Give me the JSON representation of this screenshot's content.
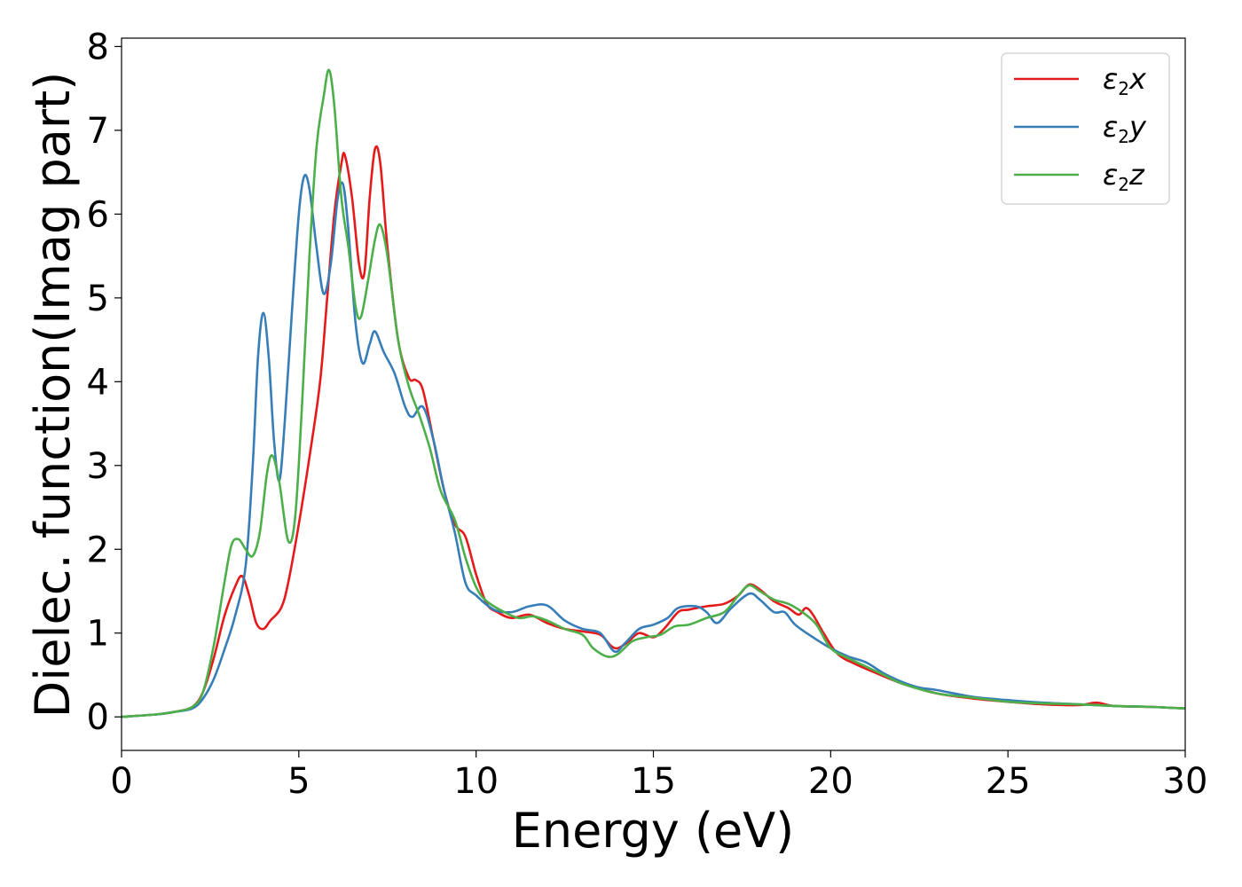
{
  "chart_data": {
    "type": "line",
    "xlabel": "Energy (eV)",
    "ylabel": "Dielec. function(Imag part)",
    "xlim": [
      0,
      30
    ],
    "ylim": [
      -0.4,
      8.1
    ],
    "xticks": [
      0,
      5,
      10,
      15,
      20,
      25,
      30
    ],
    "yticks": [
      0,
      1,
      2,
      3,
      4,
      5,
      6,
      7,
      8
    ],
    "grid": false,
    "legend_position": "top-right",
    "series": [
      {
        "name": "ε2x",
        "legend_base": "ε",
        "legend_sub": "2",
        "legend_var": "x",
        "color": "#e41a1c",
        "points": [
          [
            0,
            0
          ],
          [
            1,
            0.03
          ],
          [
            1.5,
            0.06
          ],
          [
            2,
            0.12
          ],
          [
            2.3,
            0.3
          ],
          [
            2.6,
            0.7
          ],
          [
            2.9,
            1.2
          ],
          [
            3.2,
            1.55
          ],
          [
            3.4,
            1.68
          ],
          [
            3.6,
            1.45
          ],
          [
            3.8,
            1.12
          ],
          [
            4.0,
            1.05
          ],
          [
            4.2,
            1.15
          ],
          [
            4.5,
            1.3
          ],
          [
            4.7,
            1.6
          ],
          [
            5.0,
            2.3
          ],
          [
            5.3,
            3.1
          ],
          [
            5.6,
            4.0
          ],
          [
            5.8,
            5.0
          ],
          [
            6.0,
            6.0
          ],
          [
            6.2,
            6.6
          ],
          [
            6.3,
            6.7
          ],
          [
            6.5,
            6.2
          ],
          [
            6.7,
            5.4
          ],
          [
            6.85,
            5.3
          ],
          [
            7.0,
            6.2
          ],
          [
            7.15,
            6.78
          ],
          [
            7.3,
            6.6
          ],
          [
            7.5,
            5.6
          ],
          [
            7.8,
            4.5
          ],
          [
            8.1,
            4.05
          ],
          [
            8.3,
            4.02
          ],
          [
            8.5,
            3.9
          ],
          [
            8.8,
            3.3
          ],
          [
            9.1,
            2.7
          ],
          [
            9.4,
            2.3
          ],
          [
            9.7,
            2.15
          ],
          [
            10.0,
            1.7
          ],
          [
            10.3,
            1.35
          ],
          [
            10.6,
            1.25
          ],
          [
            11.0,
            1.18
          ],
          [
            11.5,
            1.22
          ],
          [
            12.0,
            1.12
          ],
          [
            12.5,
            1.05
          ],
          [
            13.0,
            1.02
          ],
          [
            13.5,
            0.98
          ],
          [
            13.8,
            0.85
          ],
          [
            14.0,
            0.82
          ],
          [
            14.3,
            0.9
          ],
          [
            14.6,
            1.0
          ],
          [
            15.0,
            0.95
          ],
          [
            15.3,
            1.05
          ],
          [
            15.7,
            1.25
          ],
          [
            16.0,
            1.28
          ],
          [
            16.5,
            1.32
          ],
          [
            17.0,
            1.35
          ],
          [
            17.4,
            1.45
          ],
          [
            17.7,
            1.58
          ],
          [
            18.0,
            1.52
          ],
          [
            18.4,
            1.38
          ],
          [
            18.8,
            1.3
          ],
          [
            19.1,
            1.22
          ],
          [
            19.3,
            1.3
          ],
          [
            19.5,
            1.22
          ],
          [
            19.8,
            1.0
          ],
          [
            20.2,
            0.75
          ],
          [
            20.7,
            0.63
          ],
          [
            21.3,
            0.52
          ],
          [
            22.0,
            0.4
          ],
          [
            23.0,
            0.28
          ],
          [
            24.0,
            0.22
          ],
          [
            25.0,
            0.18
          ],
          [
            26.0,
            0.15
          ],
          [
            27.0,
            0.14
          ],
          [
            27.5,
            0.17
          ],
          [
            28.0,
            0.13
          ],
          [
            29.0,
            0.12
          ],
          [
            30.0,
            0.1
          ]
        ]
      },
      {
        "name": "ε2y",
        "legend_base": "ε",
        "legend_sub": "2",
        "legend_var": "y",
        "color": "#377eb8",
        "points": [
          [
            0,
            0
          ],
          [
            1,
            0.03
          ],
          [
            1.5,
            0.06
          ],
          [
            2,
            0.1
          ],
          [
            2.3,
            0.22
          ],
          [
            2.6,
            0.45
          ],
          [
            2.9,
            0.8
          ],
          [
            3.2,
            1.2
          ],
          [
            3.5,
            1.8
          ],
          [
            3.7,
            3.0
          ],
          [
            3.85,
            4.3
          ],
          [
            4.0,
            4.82
          ],
          [
            4.15,
            4.3
          ],
          [
            4.3,
            3.3
          ],
          [
            4.45,
            2.82
          ],
          [
            4.6,
            3.5
          ],
          [
            4.8,
            4.8
          ],
          [
            5.0,
            6.0
          ],
          [
            5.15,
            6.45
          ],
          [
            5.3,
            6.3
          ],
          [
            5.5,
            5.6
          ],
          [
            5.7,
            5.05
          ],
          [
            5.9,
            5.4
          ],
          [
            6.1,
            6.2
          ],
          [
            6.25,
            6.35
          ],
          [
            6.4,
            5.8
          ],
          [
            6.6,
            4.7
          ],
          [
            6.8,
            4.22
          ],
          [
            7.0,
            4.45
          ],
          [
            7.15,
            4.6
          ],
          [
            7.4,
            4.35
          ],
          [
            7.7,
            4.1
          ],
          [
            8.0,
            3.7
          ],
          [
            8.2,
            3.58
          ],
          [
            8.5,
            3.7
          ],
          [
            8.8,
            3.3
          ],
          [
            9.1,
            2.7
          ],
          [
            9.4,
            2.2
          ],
          [
            9.7,
            1.6
          ],
          [
            10.0,
            1.45
          ],
          [
            10.5,
            1.28
          ],
          [
            11.0,
            1.25
          ],
          [
            11.5,
            1.32
          ],
          [
            12.0,
            1.33
          ],
          [
            12.5,
            1.15
          ],
          [
            13.0,
            1.05
          ],
          [
            13.5,
            1.0
          ],
          [
            13.9,
            0.78
          ],
          [
            14.2,
            0.88
          ],
          [
            14.6,
            1.05
          ],
          [
            15.0,
            1.1
          ],
          [
            15.4,
            1.18
          ],
          [
            15.7,
            1.3
          ],
          [
            16.2,
            1.32
          ],
          [
            16.5,
            1.25
          ],
          [
            16.8,
            1.12
          ],
          [
            17.2,
            1.3
          ],
          [
            17.7,
            1.47
          ],
          [
            18.0,
            1.4
          ],
          [
            18.4,
            1.25
          ],
          [
            18.7,
            1.25
          ],
          [
            19.0,
            1.1
          ],
          [
            19.5,
            0.95
          ],
          [
            20.0,
            0.82
          ],
          [
            20.5,
            0.72
          ],
          [
            21.0,
            0.65
          ],
          [
            21.5,
            0.52
          ],
          [
            22.0,
            0.42
          ],
          [
            22.5,
            0.35
          ],
          [
            23.0,
            0.32
          ],
          [
            24.0,
            0.24
          ],
          [
            25.0,
            0.2
          ],
          [
            26.0,
            0.17
          ],
          [
            27.0,
            0.15
          ],
          [
            28.0,
            0.13
          ],
          [
            29.0,
            0.12
          ],
          [
            30.0,
            0.1
          ]
        ]
      },
      {
        "name": "ε2z",
        "legend_base": "ε",
        "legend_sub": "2",
        "legend_var": "z",
        "color": "#4daf4a",
        "points": [
          [
            0,
            0
          ],
          [
            1,
            0.03
          ],
          [
            1.5,
            0.06
          ],
          [
            2,
            0.12
          ],
          [
            2.3,
            0.3
          ],
          [
            2.6,
            0.85
          ],
          [
            2.9,
            1.6
          ],
          [
            3.1,
            2.05
          ],
          [
            3.3,
            2.12
          ],
          [
            3.5,
            2.0
          ],
          [
            3.7,
            1.92
          ],
          [
            3.9,
            2.2
          ],
          [
            4.1,
            2.9
          ],
          [
            4.25,
            3.12
          ],
          [
            4.45,
            2.8
          ],
          [
            4.7,
            2.1
          ],
          [
            4.9,
            2.4
          ],
          [
            5.1,
            3.8
          ],
          [
            5.3,
            5.5
          ],
          [
            5.5,
            6.8
          ],
          [
            5.7,
            7.4
          ],
          [
            5.85,
            7.72
          ],
          [
            6.0,
            7.3
          ],
          [
            6.2,
            6.2
          ],
          [
            6.4,
            5.6
          ],
          [
            6.6,
            4.9
          ],
          [
            6.75,
            4.77
          ],
          [
            6.95,
            5.2
          ],
          [
            7.15,
            5.7
          ],
          [
            7.3,
            5.87
          ],
          [
            7.5,
            5.5
          ],
          [
            7.8,
            4.5
          ],
          [
            8.1,
            3.95
          ],
          [
            8.4,
            3.6
          ],
          [
            8.7,
            3.2
          ],
          [
            9.0,
            2.7
          ],
          [
            9.4,
            2.35
          ],
          [
            9.7,
            1.9
          ],
          [
            10.0,
            1.55
          ],
          [
            10.3,
            1.38
          ],
          [
            10.8,
            1.25
          ],
          [
            11.2,
            1.18
          ],
          [
            11.6,
            1.2
          ],
          [
            12.0,
            1.15
          ],
          [
            12.5,
            1.05
          ],
          [
            13.0,
            0.98
          ],
          [
            13.3,
            0.82
          ],
          [
            13.7,
            0.72
          ],
          [
            14.0,
            0.75
          ],
          [
            14.4,
            0.9
          ],
          [
            14.8,
            0.95
          ],
          [
            15.2,
            0.98
          ],
          [
            15.6,
            1.08
          ],
          [
            16.0,
            1.1
          ],
          [
            16.5,
            1.18
          ],
          [
            17.0,
            1.25
          ],
          [
            17.4,
            1.45
          ],
          [
            17.7,
            1.57
          ],
          [
            18.0,
            1.5
          ],
          [
            18.4,
            1.4
          ],
          [
            18.8,
            1.35
          ],
          [
            19.2,
            1.25
          ],
          [
            19.6,
            1.1
          ],
          [
            20.0,
            0.82
          ],
          [
            20.5,
            0.7
          ],
          [
            21.0,
            0.6
          ],
          [
            21.5,
            0.5
          ],
          [
            22.0,
            0.4
          ],
          [
            23.0,
            0.28
          ],
          [
            24.0,
            0.23
          ],
          [
            25.0,
            0.18
          ],
          [
            26.0,
            0.16
          ],
          [
            27.0,
            0.15
          ],
          [
            28.0,
            0.13
          ],
          [
            29.0,
            0.12
          ],
          [
            30.0,
            0.1
          ]
        ]
      }
    ]
  }
}
